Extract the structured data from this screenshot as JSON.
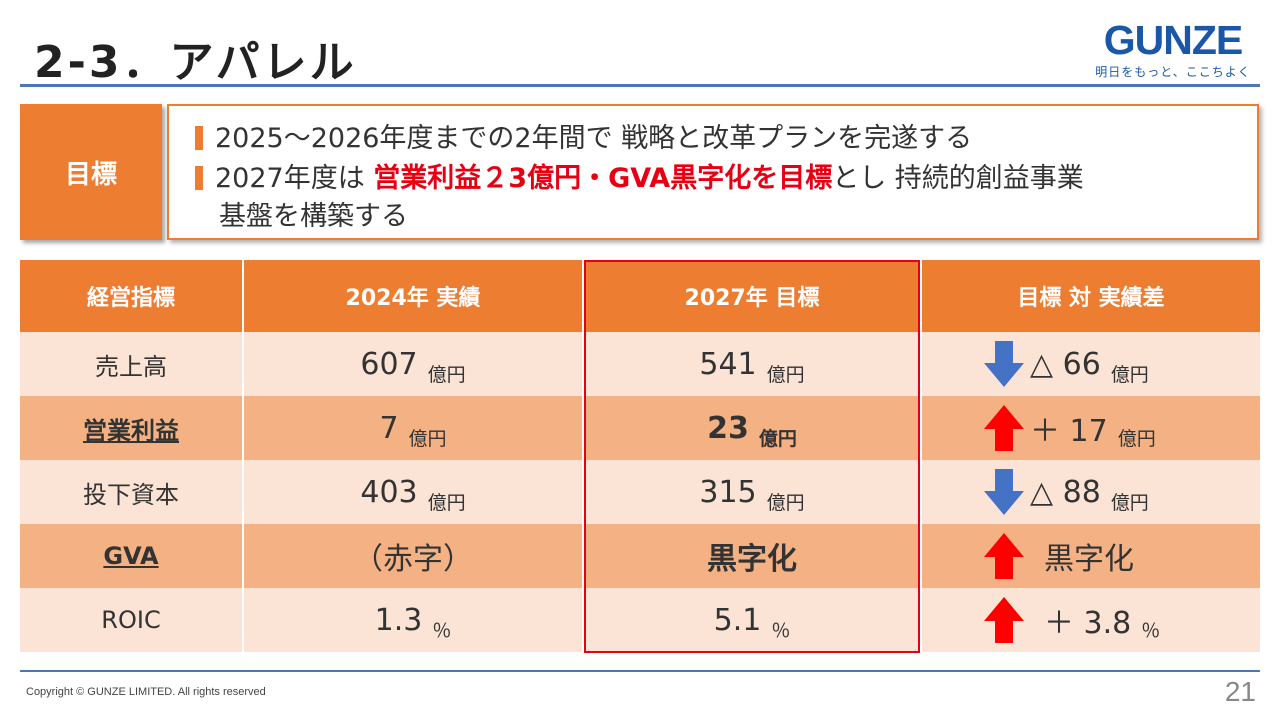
{
  "header": {
    "title": "2-3．アパレル",
    "logo_text": "GUNZE",
    "logo_tagline": "明日をもっと、ここちよく",
    "logo_color": "#1b57a8"
  },
  "goal": {
    "label": "目標",
    "line1": "2025〜2026年度までの2年間で 戦略と改革プランを完遂する",
    "line2_prefix": "2027年度は ",
    "line2_highlight": "営業利益２3億円・GVA黒字化を目標",
    "line2_suffix": "とし 持続的創益事業",
    "line3": "基盤を構築する"
  },
  "table": {
    "headers": [
      "経営指標",
      "2024年 実績",
      "2027年 目標",
      "目標 対 実績差"
    ],
    "rows": [
      {
        "metric": "売上高",
        "actual": "607",
        "actual_unit": "億円",
        "target": "541",
        "target_unit": "億円",
        "direction": "down",
        "diff": "△ 66",
        "diff_unit": "億円"
      },
      {
        "metric": "営業利益",
        "actual": "7",
        "actual_unit": "億円",
        "target": "23",
        "target_unit": "億円",
        "direction": "up",
        "diff": "＋ 17",
        "diff_unit": "億円"
      },
      {
        "metric": "投下資本",
        "actual": "403",
        "actual_unit": "億円",
        "target": "315",
        "target_unit": "億円",
        "direction": "down",
        "diff": "△ 88",
        "diff_unit": "億円"
      },
      {
        "metric": "GVA",
        "actual": "（赤字）",
        "target": "黒字化",
        "direction": "up",
        "diff": "黒字化"
      },
      {
        "metric": "ROIC",
        "actual": "1.3",
        "actual_unit": "％",
        "target": "5.1",
        "target_unit": "％",
        "direction": "up",
        "diff": "＋ 3.8",
        "diff_unit": "％"
      }
    ]
  },
  "colors": {
    "accent_orange": "#ed7d31",
    "row_light": "#fbe4d5",
    "row_dark": "#f4b183",
    "highlight_red": "#e60012",
    "arrow_up": "#ff0000",
    "arrow_down": "#4472c4",
    "rule_blue": "#4a78b5"
  },
  "footer": {
    "copyright": "Copyright © GUNZE LIMITED. All rights reserved",
    "page_number": "21"
  }
}
